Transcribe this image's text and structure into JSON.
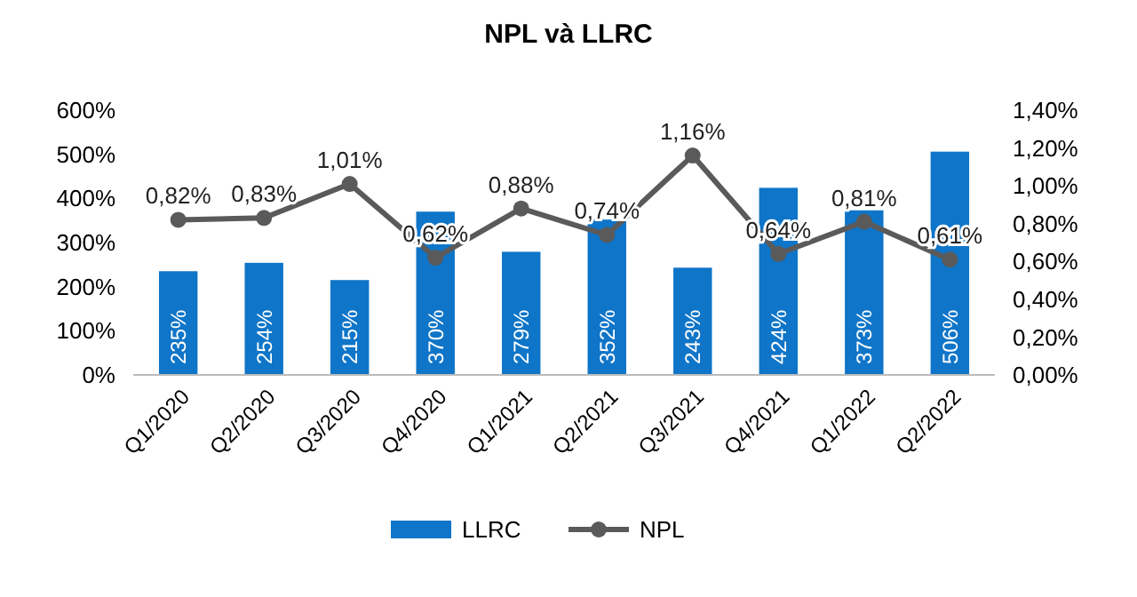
{
  "chart_data": {
    "type": "bar",
    "title": "NPL và LLRC",
    "categories": [
      "Q1/2020",
      "Q2/2020",
      "Q3/2020",
      "Q4/2020",
      "Q1/2021",
      "Q2/2021",
      "Q3/2021",
      "Q4/2021",
      "Q1/2022",
      "Q2/2022"
    ],
    "series": [
      {
        "name": "LLRC",
        "color": "#0f75c8",
        "values": [
          235,
          254,
          215,
          370,
          279,
          352,
          243,
          424,
          373,
          506
        ],
        "value_labels": [
          "235%",
          "254%",
          "215%",
          "370%",
          "279%",
          "352%",
          "243%",
          "424%",
          "373%",
          "506%"
        ]
      },
      {
        "name": "NPL",
        "type": "line",
        "axis": "y2",
        "color": "#5a5a5a",
        "marker": "circle",
        "values": [
          0.82,
          0.83,
          1.01,
          0.62,
          0.88,
          0.74,
          1.16,
          0.64,
          0.81,
          0.61
        ],
        "value_labels": [
          "0,82%",
          "0,83%",
          "1,01%",
          "0,62%",
          "0,88%",
          "0,74%",
          "1,16%",
          "0,64%",
          "0,81%",
          "0,61%"
        ]
      }
    ],
    "ylim": [
      0,
      600
    ],
    "yticks": [
      {
        "value": 0,
        "label": "0%"
      },
      {
        "value": 100,
        "label": "100%"
      },
      {
        "value": 200,
        "label": "200%"
      },
      {
        "value": 300,
        "label": "300%"
      },
      {
        "value": 400,
        "label": "400%"
      },
      {
        "value": 500,
        "label": "500%"
      },
      {
        "value": 600,
        "label": "600%"
      }
    ],
    "y2lim": [
      0,
      1.4
    ],
    "y2ticks": [
      {
        "value": 0,
        "label": "0,00%"
      },
      {
        "value": 0.2,
        "label": "0,20%"
      },
      {
        "value": 0.4,
        "label": "0,40%"
      },
      {
        "value": 0.6,
        "label": "0,60%"
      },
      {
        "value": 0.8,
        "label": "0,80%"
      },
      {
        "value": 1.0,
        "label": "1,00%"
      },
      {
        "value": 1.2,
        "label": "1,20%"
      },
      {
        "value": 1.4,
        "label": "1,40%"
      }
    ],
    "legend": "bottom",
    "grid": false
  }
}
